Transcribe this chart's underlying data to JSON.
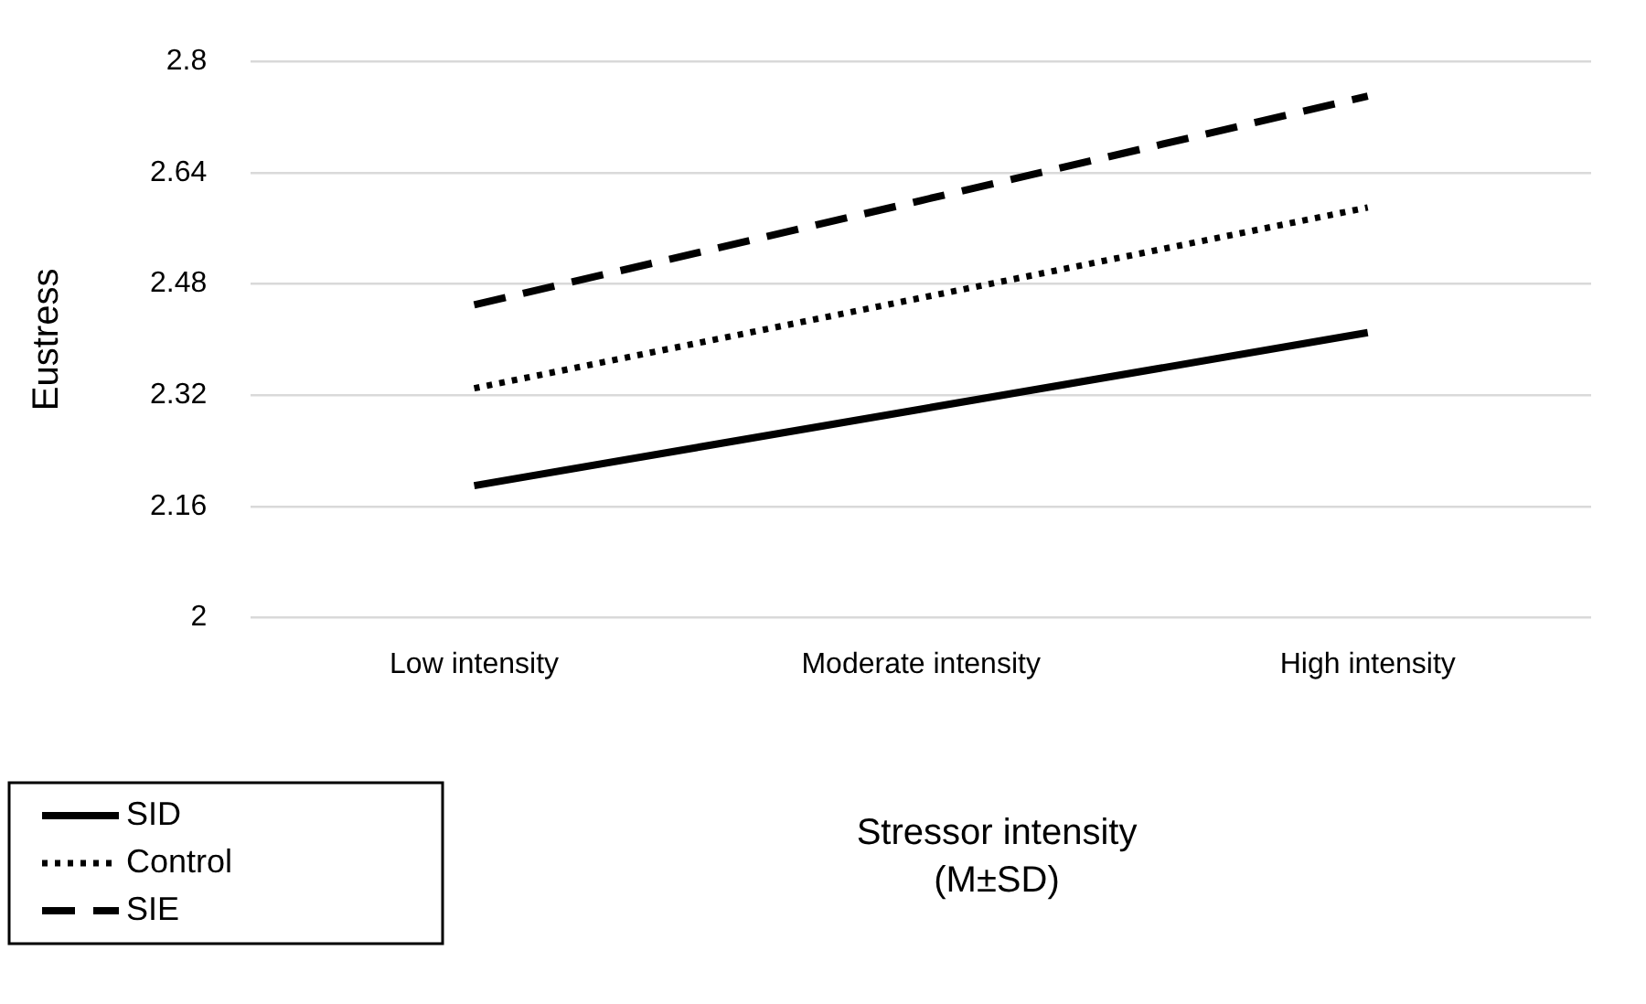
{
  "chart_data": {
    "type": "line",
    "xlabel": "Stressor intensity (M±SD)",
    "ylabel": "Eustress",
    "categories": [
      "Low intensity",
      "Moderate intensity",
      "High intensity"
    ],
    "series": [
      {
        "name": "SID",
        "color": "#000000",
        "line_style": "solid",
        "values": [
          2.19,
          2.3,
          2.41
        ]
      },
      {
        "name": "Control",
        "color": "#000000",
        "line_style": "dotted",
        "values": [
          2.33,
          2.46,
          2.59
        ]
      },
      {
        "name": "SIE",
        "color": "#000000",
        "line_style": "dashed",
        "values": [
          2.45,
          2.6,
          2.75
        ]
      }
    ],
    "ylim": [
      2,
      2.8
    ],
    "yticks": [
      2,
      2.16,
      2.32,
      2.48,
      2.64,
      2.8
    ],
    "grid": "y",
    "legend": "bottom left",
    "marker": "none"
  }
}
